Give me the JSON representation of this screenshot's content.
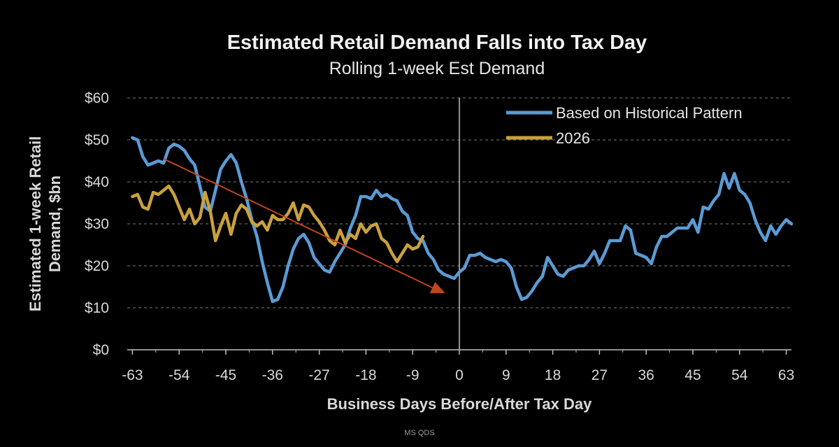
{
  "chart_data": {
    "type": "line",
    "title": "Estimated Retail Demand Falls into Tax Day",
    "subtitle": "Rolling 1-week Est Demand",
    "xlabel": "Business Days Before/After Tax Day",
    "ylabel_line1": "Estimated 1-week Retail",
    "ylabel_line2": "Demand, $bn",
    "xlim": [
      -64,
      64
    ],
    "ylim": [
      0,
      60
    ],
    "x_ticks": [
      -63,
      -54,
      -45,
      -36,
      -27,
      -18,
      -9,
      0,
      9,
      18,
      27,
      36,
      45,
      54,
      63
    ],
    "x_tick_labels": [
      "-63",
      "-54",
      "-45",
      "-36",
      "-27",
      "-18",
      "-9",
      "0",
      "9",
      "18",
      "27",
      "36",
      "45",
      "54",
      "63"
    ],
    "y_ticks": [
      0,
      10,
      20,
      30,
      40,
      50,
      60
    ],
    "y_tick_labels": [
      "$0",
      "$10",
      "$20",
      "$30",
      "$40",
      "$50",
      "$60"
    ],
    "grid": true,
    "legend_position": "top-right",
    "colors": {
      "historical": "#5b9bd5",
      "y2026": "#c9a13d",
      "trend": "#c0441f",
      "vline": "#bfbfbf",
      "background": "#000000"
    },
    "series": [
      {
        "name": "Based on Historical Pattern",
        "color": "#5b9bd5",
        "points": [
          [
            -63,
            50.5
          ],
          [
            -62,
            50
          ],
          [
            -61,
            46
          ],
          [
            -60,
            44
          ],
          [
            -59,
            44.5
          ],
          [
            -58,
            45
          ],
          [
            -57,
            44.5
          ],
          [
            -56,
            48
          ],
          [
            -55,
            49
          ],
          [
            -54,
            48.5
          ],
          [
            -53,
            47.5
          ],
          [
            -52,
            45.5
          ],
          [
            -51,
            44
          ],
          [
            -50,
            39
          ],
          [
            -49,
            34
          ],
          [
            -48,
            33
          ],
          [
            -47,
            38
          ],
          [
            -46,
            43
          ],
          [
            -45,
            45
          ],
          [
            -44,
            46.5
          ],
          [
            -43,
            44.5
          ],
          [
            -42,
            40
          ],
          [
            -41,
            36
          ],
          [
            -40,
            31
          ],
          [
            -39,
            27
          ],
          [
            -38,
            21
          ],
          [
            -37,
            16
          ],
          [
            -36,
            11.5
          ],
          [
            -35,
            12
          ],
          [
            -34,
            15
          ],
          [
            -33,
            20
          ],
          [
            -32,
            24
          ],
          [
            -31,
            26.5
          ],
          [
            -30,
            27.5
          ],
          [
            -29,
            25.5
          ],
          [
            -28,
            22
          ],
          [
            -27,
            20.5
          ],
          [
            -26,
            19
          ],
          [
            -25,
            18.5
          ],
          [
            -24,
            21
          ],
          [
            -23,
            23
          ],
          [
            -22,
            25
          ],
          [
            -21,
            29
          ],
          [
            -20,
            32
          ],
          [
            -19,
            36.5
          ],
          [
            -18,
            36.5
          ],
          [
            -17,
            36
          ],
          [
            -16,
            38
          ],
          [
            -15,
            36.5
          ],
          [
            -14,
            37
          ],
          [
            -13,
            36
          ],
          [
            -12,
            35.5
          ],
          [
            -11,
            33
          ],
          [
            -10,
            32
          ],
          [
            -9,
            28
          ],
          [
            -8,
            26.5
          ],
          [
            -7,
            26
          ],
          [
            -6,
            23
          ],
          [
            -5,
            21.5
          ],
          [
            -4,
            19
          ],
          [
            -3,
            18
          ],
          [
            -2,
            17.5
          ],
          [
            -1,
            17
          ],
          [
            0,
            18.5
          ],
          [
            1,
            19.5
          ],
          [
            2,
            22.5
          ],
          [
            3,
            22.5
          ],
          [
            4,
            23
          ],
          [
            5,
            22
          ],
          [
            6,
            21.5
          ],
          [
            7,
            21
          ],
          [
            8,
            21.5
          ],
          [
            9,
            21
          ],
          [
            10,
            19.5
          ],
          [
            11,
            15
          ],
          [
            12,
            12
          ],
          [
            13,
            12.5
          ],
          [
            14,
            14
          ],
          [
            15,
            16
          ],
          [
            16,
            17.5
          ],
          [
            17,
            22
          ],
          [
            18,
            20
          ],
          [
            19,
            18
          ],
          [
            20,
            17.5
          ],
          [
            21,
            19
          ],
          [
            22,
            19.5
          ],
          [
            23,
            20
          ],
          [
            24,
            20
          ],
          [
            25,
            21.5
          ],
          [
            26,
            23.5
          ],
          [
            27,
            20.5
          ],
          [
            28,
            23
          ],
          [
            29,
            26
          ],
          [
            30,
            26
          ],
          [
            31,
            26
          ],
          [
            32,
            29.5
          ],
          [
            33,
            28.5
          ],
          [
            34,
            23
          ],
          [
            35,
            22.5
          ],
          [
            36,
            22
          ],
          [
            37,
            20.5
          ],
          [
            38,
            24.5
          ],
          [
            39,
            27
          ],
          [
            40,
            27
          ],
          [
            41,
            28
          ],
          [
            42,
            29
          ],
          [
            43,
            29
          ],
          [
            44,
            29
          ],
          [
            45,
            31
          ],
          [
            46,
            28
          ],
          [
            47,
            34
          ],
          [
            48,
            33.5
          ],
          [
            49,
            35.5
          ],
          [
            50,
            37
          ],
          [
            51,
            42
          ],
          [
            52,
            38.5
          ],
          [
            53,
            42
          ],
          [
            54,
            38
          ],
          [
            55,
            37
          ],
          [
            56,
            35
          ],
          [
            57,
            31
          ],
          [
            58,
            28
          ],
          [
            59,
            26
          ],
          [
            60,
            29.5
          ],
          [
            61,
            27.5
          ],
          [
            62,
            29.5
          ],
          [
            63,
            31
          ],
          [
            64,
            30
          ]
        ]
      },
      {
        "name": "2026",
        "color": "#c9a13d",
        "points": [
          [
            -63,
            36.5
          ],
          [
            -62,
            37
          ],
          [
            -61,
            34
          ],
          [
            -60,
            33.5
          ],
          [
            -59,
            37.5
          ],
          [
            -58,
            37
          ],
          [
            -57,
            38
          ],
          [
            -56,
            39
          ],
          [
            -55,
            37
          ],
          [
            -54,
            34
          ],
          [
            -53,
            31
          ],
          [
            -52,
            33.5
          ],
          [
            -51,
            30
          ],
          [
            -50,
            31.5
          ],
          [
            -49,
            37.5
          ],
          [
            -48,
            33
          ],
          [
            -47,
            26
          ],
          [
            -46,
            29.5
          ],
          [
            -45,
            32.5
          ],
          [
            -44,
            27.5
          ],
          [
            -43,
            32.5
          ],
          [
            -42,
            34.5
          ],
          [
            -41,
            33.5
          ],
          [
            -40,
            30.5
          ],
          [
            -39,
            29.5
          ],
          [
            -38,
            30.5
          ],
          [
            -37,
            28.5
          ],
          [
            -36,
            32
          ],
          [
            -35,
            31
          ],
          [
            -34,
            31
          ],
          [
            -33,
            32.5
          ],
          [
            -32,
            35
          ],
          [
            -31,
            31
          ],
          [
            -30,
            34.5
          ],
          [
            -29,
            34
          ],
          [
            -28,
            32
          ],
          [
            -27,
            30.5
          ],
          [
            -26,
            28.5
          ],
          [
            -25,
            26
          ],
          [
            -24,
            25
          ],
          [
            -23,
            28.5
          ],
          [
            -22,
            25.5
          ],
          [
            -21,
            27.5
          ],
          [
            -20,
            26.5
          ],
          [
            -19,
            30
          ],
          [
            -18,
            28
          ],
          [
            -17,
            29.5
          ],
          [
            -16,
            30
          ],
          [
            -15,
            26.5
          ],
          [
            -14,
            25.5
          ],
          [
            -13,
            23
          ],
          [
            -12,
            21
          ],
          [
            -11,
            23
          ],
          [
            -10,
            25
          ],
          [
            -9,
            24
          ],
          [
            -8,
            24.5
          ],
          [
            -7,
            27
          ]
        ]
      }
    ],
    "trend_arrow": {
      "from": [
        -57,
        45.5
      ],
      "to": [
        -3,
        13.5
      ]
    },
    "tax_day_marker_x": 0,
    "source": "MS QDS"
  }
}
